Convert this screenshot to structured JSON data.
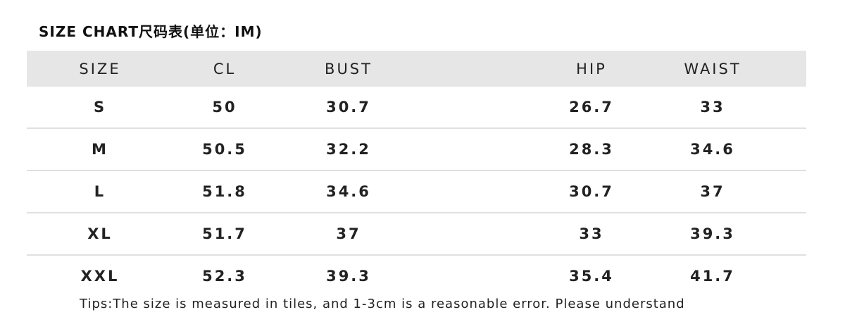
{
  "title": "SIZE CHART尺码表(单位：IM)",
  "headers": [
    "SIZE",
    "CL",
    "BUST",
    "HIP",
    "WAIST"
  ],
  "rows": [
    [
      "S",
      "50",
      "30.7",
      "26.7",
      "33"
    ],
    [
      "M",
      "50.5",
      "32.2",
      "28.3",
      "34.6"
    ],
    [
      "L",
      "51.8",
      "34.6",
      "30.7",
      "37"
    ],
    [
      "XL",
      "51.7",
      "37",
      "33",
      "39.3"
    ],
    [
      "XXL",
      "52.3",
      "39.3",
      "35.4",
      "41.7"
    ]
  ],
  "tips": "Tips:The size is measured in tiles, and 1-3cm is a reasonable error. Please understand"
}
